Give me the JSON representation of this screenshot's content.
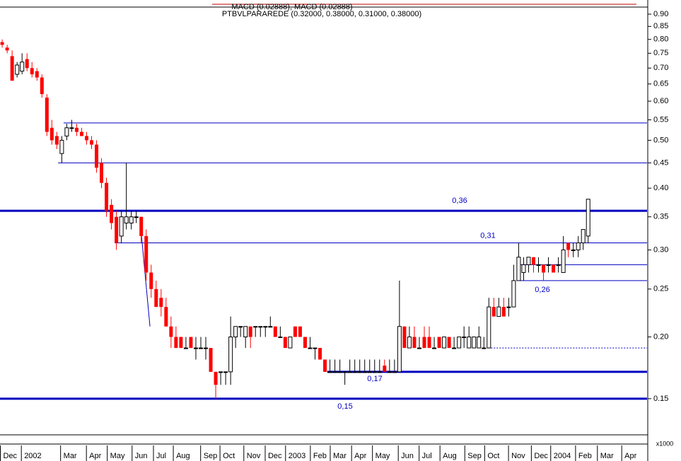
{
  "chart_data": {
    "type": "candlestick",
    "indicator_label": "MACD (0.02888), MACD (0.02888)",
    "title": "PTBVLPARAREDE (0.32000, 0.38000, 0.31000, 0.38000)",
    "log_scale": true,
    "up_color": "#ffffff",
    "down_color": "#ff0000",
    "line_color": "#0000c0",
    "ylim": [
      0.128,
      0.924
    ],
    "yticks": [
      {
        "value": 0.9,
        "label": "0.90"
      },
      0.85,
      {
        "value": 0.8,
        "label": "0.80"
      },
      0.75,
      {
        "value": 0.7,
        "label": "0.70"
      },
      0.65,
      {
        "value": 0.6,
        "label": "0.60"
      },
      0.55,
      {
        "value": 0.5,
        "label": "0.50"
      },
      0.45,
      {
        "value": 0.4,
        "label": "0.40"
      },
      0.35,
      {
        "value": 0.3,
        "label": "0.30"
      },
      0.25,
      {
        "value": 0.2,
        "label": "0.20"
      },
      0.15
    ],
    "xlim": [
      -0.3,
      130
    ],
    "xticks": [
      {
        "value": -0.3,
        "label": "Dec"
      },
      {
        "value": 4.0,
        "label": "2002"
      },
      {
        "value": 11.9,
        "label": "Mar"
      },
      {
        "value": 17.1,
        "label": "Apr"
      },
      {
        "value": 21.3,
        "label": "May"
      },
      {
        "value": 26.3,
        "label": "Jun"
      },
      {
        "value": 30.6,
        "label": "Jul"
      },
      {
        "value": 34.6,
        "label": "Aug"
      },
      {
        "value": 40.1,
        "label": "Sep"
      },
      {
        "value": 44.0,
        "label": "Oct"
      },
      {
        "value": 48.8,
        "label": "Nov"
      },
      {
        "value": 53.1,
        "label": "Dec"
      },
      {
        "value": 57.2,
        "label": "2003"
      },
      {
        "value": 62.2,
        "label": "Feb"
      },
      {
        "value": 66.2,
        "label": "Mar"
      },
      {
        "value": 70.5,
        "label": "Apr"
      },
      {
        "value": 74.7,
        "label": "May"
      },
      {
        "value": 79.9,
        "label": "Jun"
      },
      {
        "value": 84.1,
        "label": "Jul"
      },
      {
        "value": 88.3,
        "label": "Aug"
      },
      {
        "value": 93.3,
        "label": "Sep"
      },
      {
        "value": 97.3,
        "label": "Oct"
      },
      {
        "value": 102.1,
        "label": "Nov"
      },
      {
        "value": 106.7,
        "label": "Dec"
      },
      {
        "value": 110.6,
        "label": "2004"
      },
      {
        "value": 115.6,
        "label": "Feb"
      },
      {
        "value": 120.0,
        "label": "Mar"
      },
      {
        "value": 124.9,
        "label": "Apr"
      }
    ],
    "open": [
      0.79,
      0.77,
      0.74,
      0.68,
      0.69,
      0.73,
      0.7,
      0.69,
      0.67,
      0.61,
      0.53,
      0.51,
      0.47,
      0.51,
      0.53,
      0.53,
      0.52,
      0.51,
      0.5,
      0.49,
      0.45,
      0.41,
      0.37,
      0.35,
      0.32,
      0.34,
      0.34,
      0.35,
      0.35,
      0.32,
      0.27,
      0.25,
      0.24,
      0.23,
      0.21,
      0.2,
      0.2,
      0.19,
      0.2,
      0.19,
      0.19,
      0.19,
      0.19,
      0.17,
      0.17,
      0.17,
      0.17,
      0.2,
      0.21,
      0.2,
      0.21,
      0.21,
      0.21,
      0.21,
      0.21,
      0.21,
      0.2,
      0.2,
      0.19,
      0.21,
      0.21,
      0.2,
      0.19,
      0.19,
      0.19,
      0.18,
      0.17,
      0.17,
      0.17,
      0.17,
      0.17,
      0.17,
      0.17,
      0.17,
      0.17,
      0.17,
      0.17,
      0.175,
      0.17,
      0.17,
      0.17,
      0.21,
      0.19,
      0.2,
      0.19,
      0.2,
      0.2,
      0.19,
      0.2,
      0.19,
      0.2,
      0.19,
      0.19,
      0.2,
      0.19,
      0.19,
      0.19,
      0.19,
      0.19,
      0.23,
      0.22,
      0.23,
      0.23,
      0.23,
      0.26,
      0.27,
      0.28,
      0.29,
      0.28,
      0.28,
      0.28,
      0.28,
      0.28,
      0.27,
      0.31,
      0.3,
      0.3,
      0.31,
      0.32
    ],
    "high": [
      0.8,
      0.78,
      0.76,
      0.72,
      0.75,
      0.75,
      0.72,
      0.7,
      0.68,
      0.62,
      0.55,
      0.52,
      0.51,
      0.54,
      0.55,
      0.54,
      0.53,
      0.52,
      0.51,
      0.5,
      0.46,
      0.42,
      0.38,
      0.36,
      0.36,
      0.45,
      0.36,
      0.36,
      0.35,
      0.33,
      0.28,
      0.26,
      0.25,
      0.24,
      0.22,
      0.21,
      0.2,
      0.2,
      0.2,
      0.2,
      0.2,
      0.2,
      0.19,
      0.17,
      0.17,
      0.17,
      0.22,
      0.21,
      0.21,
      0.21,
      0.21,
      0.21,
      0.21,
      0.21,
      0.22,
      0.21,
      0.21,
      0.2,
      0.2,
      0.21,
      0.21,
      0.2,
      0.2,
      0.19,
      0.19,
      0.18,
      0.18,
      0.18,
      0.18,
      0.17,
      0.18,
      0.18,
      0.18,
      0.18,
      0.18,
      0.18,
      0.18,
      0.18,
      0.18,
      0.18,
      0.26,
      0.21,
      0.21,
      0.21,
      0.2,
      0.21,
      0.21,
      0.2,
      0.2,
      0.2,
      0.2,
      0.2,
      0.2,
      0.21,
      0.21,
      0.2,
      0.21,
      0.2,
      0.24,
      0.24,
      0.24,
      0.24,
      0.24,
      0.28,
      0.31,
      0.29,
      0.29,
      0.29,
      0.29,
      0.28,
      0.29,
      0.28,
      0.29,
      0.32,
      0.31,
      0.31,
      0.32,
      0.33,
      0.38
    ],
    "low": [
      0.77,
      0.75,
      0.66,
      0.67,
      0.68,
      0.69,
      0.67,
      0.66,
      0.61,
      0.51,
      0.49,
      0.48,
      0.45,
      0.5,
      0.52,
      0.51,
      0.51,
      0.49,
      0.48,
      0.43,
      0.4,
      0.35,
      0.33,
      0.3,
      0.31,
      0.33,
      0.33,
      0.34,
      0.31,
      0.26,
      0.24,
      0.23,
      0.22,
      0.21,
      0.19,
      0.19,
      0.19,
      0.19,
      0.19,
      0.18,
      0.19,
      0.18,
      0.17,
      0.15,
      0.16,
      0.16,
      0.16,
      0.19,
      0.2,
      0.19,
      0.19,
      0.2,
      0.2,
      0.2,
      0.21,
      0.2,
      0.2,
      0.19,
      0.19,
      0.2,
      0.2,
      0.19,
      0.19,
      0.18,
      0.18,
      0.17,
      0.17,
      0.17,
      0.17,
      0.16,
      0.17,
      0.17,
      0.17,
      0.17,
      0.17,
      0.17,
      0.17,
      0.17,
      0.17,
      0.17,
      0.17,
      0.19,
      0.19,
      0.19,
      0.19,
      0.19,
      0.19,
      0.19,
      0.19,
      0.19,
      0.19,
      0.19,
      0.19,
      0.19,
      0.19,
      0.19,
      0.19,
      0.19,
      0.19,
      0.22,
      0.22,
      0.22,
      0.22,
      0.23,
      0.26,
      0.26,
      0.27,
      0.27,
      0.27,
      0.26,
      0.27,
      0.27,
      0.27,
      0.27,
      0.29,
      0.29,
      0.29,
      0.3,
      0.31
    ],
    "close": [
      0.78,
      0.76,
      0.66,
      0.71,
      0.72,
      0.7,
      0.68,
      0.67,
      0.62,
      0.52,
      0.5,
      0.49,
      0.5,
      0.53,
      0.53,
      0.52,
      0.51,
      0.5,
      0.49,
      0.44,
      0.41,
      0.36,
      0.34,
      0.31,
      0.35,
      0.35,
      0.35,
      0.35,
      0.32,
      0.27,
      0.25,
      0.23,
      0.23,
      0.21,
      0.2,
      0.19,
      0.19,
      0.19,
      0.19,
      0.19,
      0.19,
      0.19,
      0.17,
      0.16,
      0.17,
      0.17,
      0.2,
      0.21,
      0.21,
      0.21,
      0.2,
      0.21,
      0.21,
      0.21,
      0.21,
      0.2,
      0.2,
      0.19,
      0.2,
      0.2,
      0.2,
      0.19,
      0.19,
      0.19,
      0.18,
      0.17,
      0.17,
      0.17,
      0.17,
      0.17,
      0.17,
      0.17,
      0.17,
      0.17,
      0.17,
      0.17,
      0.17,
      0.17,
      0.17,
      0.17,
      0.21,
      0.19,
      0.2,
      0.19,
      0.19,
      0.19,
      0.19,
      0.19,
      0.19,
      0.2,
      0.19,
      0.19,
      0.2,
      0.2,
      0.2,
      0.2,
      0.2,
      0.19,
      0.23,
      0.22,
      0.23,
      0.22,
      0.23,
      0.26,
      0.29,
      0.28,
      0.29,
      0.28,
      0.28,
      0.27,
      0.28,
      0.27,
      0.28,
      0.3,
      0.3,
      0.3,
      0.31,
      0.33,
      0.38
    ],
    "hlines": [
      {
        "value": 0.542,
        "start": 12.5
      },
      {
        "value": 0.45,
        "start": 11.4
      },
      {
        "value": 0.36,
        "label": "0,36",
        "start": -0.3,
        "style": "thick"
      },
      {
        "value": 0.31,
        "label": "0,31",
        "start": 22.8
      },
      {
        "value": 0.28,
        "start": 104.4
      },
      {
        "value": 0.26,
        "label": "0,26",
        "start": 104.4
      },
      {
        "value": 0.19,
        "start": 98,
        "style": "dashed"
      },
      {
        "value": 0.17,
        "label": "0,17",
        "start": 65.6,
        "style": "thick"
      },
      {
        "value": 0.15,
        "label": "0,15",
        "start": -0.3,
        "style": "thick"
      }
    ],
    "trendlines": [
      {
        "x": [
          28.2,
          29.9
        ],
        "y": [
          0.32,
          0.21
        ]
      }
    ],
    "volume_scale": "x1000"
  }
}
